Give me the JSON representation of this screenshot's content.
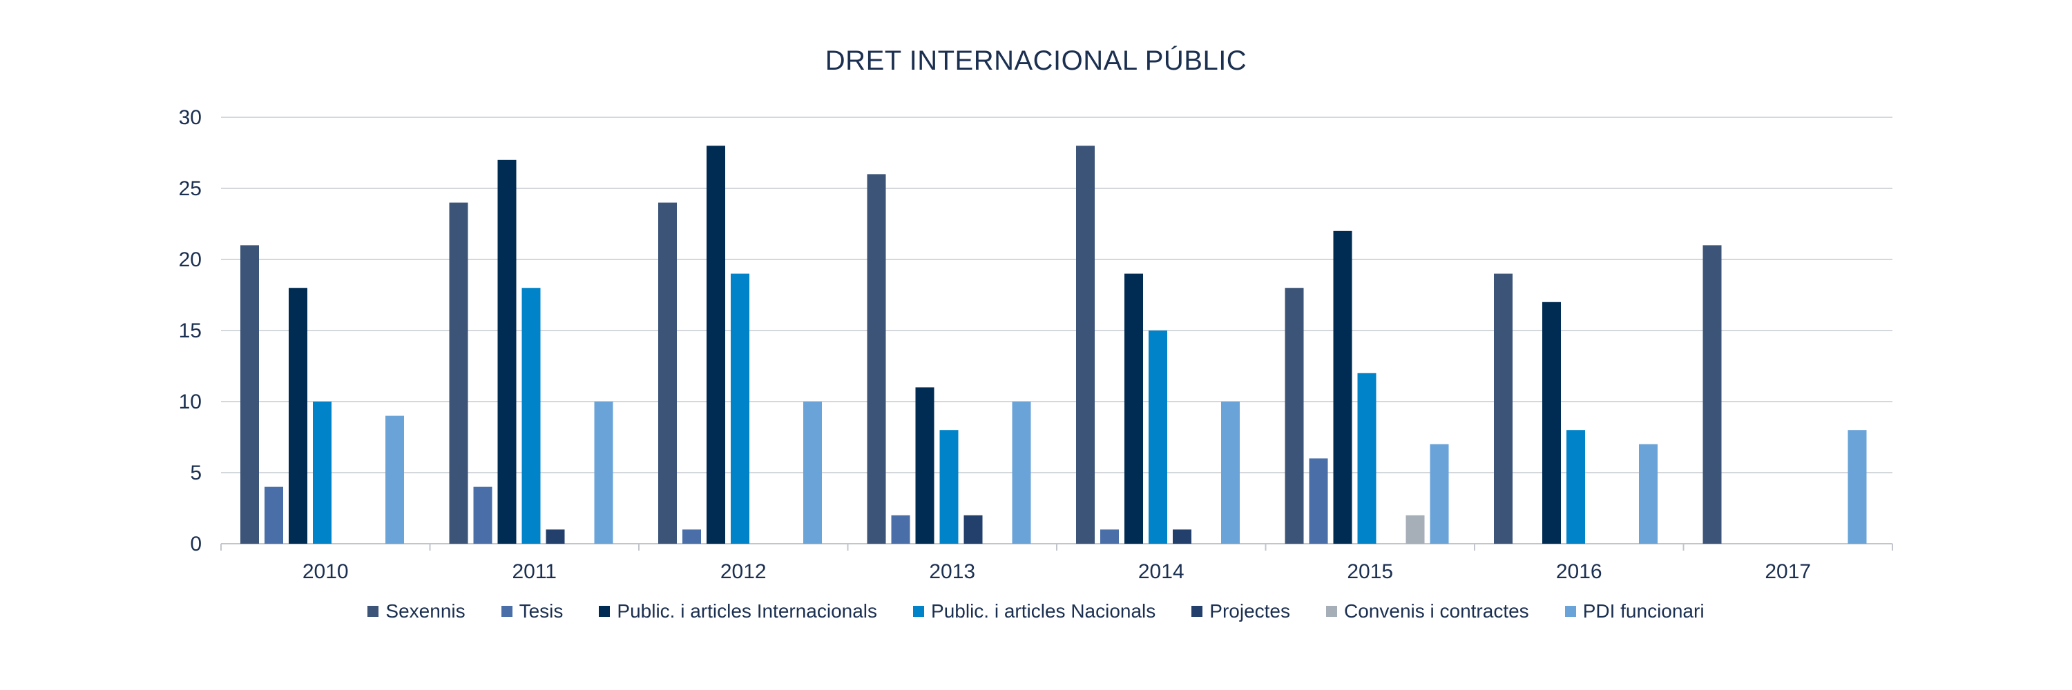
{
  "chart_data": {
    "type": "bar",
    "title": "DRET INTERNACIONAL PÚBLIC",
    "xlabel": "",
    "ylabel": "",
    "ylim": [
      0,
      30
    ],
    "yticks": [
      0,
      5,
      10,
      15,
      20,
      25,
      30
    ],
    "grid": true,
    "legend_position": "bottom",
    "categories": [
      "2010",
      "2011",
      "2012",
      "2013",
      "2014",
      "2015",
      "2016",
      "2017"
    ],
    "series": [
      {
        "name": "Sexennis",
        "color": "#3b5478",
        "values": [
          21,
          24,
          24,
          26,
          28,
          18,
          19,
          21
        ]
      },
      {
        "name": "Tesis",
        "color": "#4a6fa8",
        "values": [
          4,
          4,
          1,
          2,
          1,
          6,
          0,
          0
        ]
      },
      {
        "name": "Public. i articles Internacionals",
        "color": "#002b52",
        "values": [
          18,
          27,
          28,
          11,
          19,
          22,
          17,
          0
        ]
      },
      {
        "name": "Public. i articles Nacionals",
        "color": "#0083c8",
        "values": [
          10,
          18,
          19,
          8,
          15,
          12,
          8,
          0
        ]
      },
      {
        "name": "Projectes",
        "color": "#233f6b",
        "values": [
          0,
          1,
          0,
          2,
          1,
          0,
          0,
          0
        ]
      },
      {
        "name": "Convenis i contractes",
        "color": "#a6aeb8",
        "values": [
          0,
          0,
          0,
          0,
          0,
          2,
          0,
          0
        ]
      },
      {
        "name": "PDI funcionari",
        "color": "#6aa3d8",
        "values": [
          9,
          10,
          10,
          10,
          10,
          7,
          7,
          8
        ]
      }
    ]
  }
}
